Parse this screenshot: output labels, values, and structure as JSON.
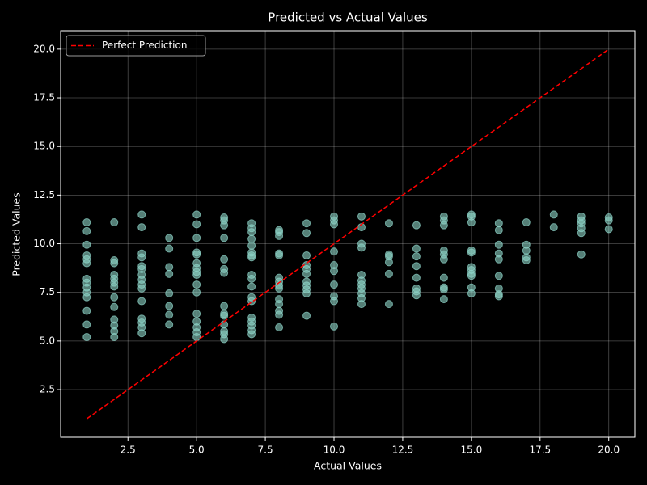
{
  "chart_data": {
    "type": "scatter",
    "title": "Predicted vs Actual Values",
    "xlabel": "Actual Values",
    "ylabel": "Predicted Values",
    "xlim": [
      0.05,
      20.95
    ],
    "ylim": [
      0.05,
      20.95
    ],
    "xticks": [
      2.5,
      {
        "value": 5,
        "label": "5.0"
      },
      7.5,
      {
        "value": 10,
        "label": "10.0"
      },
      12.5,
      {
        "value": 15,
        "label": "15.0"
      },
      17.5,
      {
        "value": 20,
        "label": "20.0"
      }
    ],
    "yticks": [
      2.5,
      {
        "value": 5,
        "label": "5.0"
      },
      7.5,
      {
        "value": 10,
        "label": "10.0"
      },
      12.5,
      {
        "value": 15,
        "label": "15.0"
      },
      17.5,
      {
        "value": 20,
        "label": "20.0"
      }
    ],
    "grid": true,
    "legend": "upper left",
    "series": [
      {
        "type": "scatter",
        "color": "#8dd3c7",
        "x": [
          1,
          1,
          1,
          1,
          1,
          1,
          1,
          1,
          1,
          1,
          1,
          1,
          1,
          1,
          2,
          2,
          2,
          2,
          2,
          2,
          2,
          2,
          2,
          2,
          2,
          2,
          2,
          3,
          3,
          3,
          3,
          3,
          3,
          3,
          3,
          3,
          3,
          3,
          3,
          3,
          3,
          3,
          4,
          4,
          4,
          4,
          4,
          4,
          4,
          4,
          5,
          5,
          5,
          5,
          5,
          5,
          5,
          5,
          5,
          5,
          5,
          5,
          5,
          5,
          5,
          5,
          6,
          6,
          6,
          6,
          6,
          6,
          6,
          6,
          6,
          6,
          6,
          6,
          6,
          6,
          7,
          7,
          7,
          7,
          7,
          7,
          7,
          7,
          7,
          7,
          7,
          7,
          7,
          7,
          7,
          7,
          7,
          7,
          8,
          8,
          8,
          8,
          8,
          8,
          8,
          8,
          8,
          8,
          8,
          8,
          8,
          8,
          9,
          9,
          9,
          9,
          9,
          9,
          9,
          9,
          9,
          9,
          9,
          10,
          10,
          10,
          10,
          10,
          10,
          10,
          10,
          10,
          10,
          11,
          11,
          11,
          11,
          11,
          11,
          11,
          11,
          11,
          11,
          11,
          12,
          12,
          12,
          12,
          12,
          12,
          13,
          13,
          13,
          13,
          13,
          13,
          13,
          13,
          14,
          14,
          14,
          14,
          14,
          14,
          14,
          14,
          14,
          14,
          15,
          15,
          15,
          15,
          15,
          15,
          15,
          15,
          15,
          15,
          15,
          16,
          16,
          16,
          16,
          16,
          16,
          16,
          16,
          16,
          17,
          17,
          17,
          17,
          17,
          18,
          18,
          19,
          19,
          19,
          19,
          19,
          19,
          20,
          20,
          20
        ],
        "values": [
          11.1,
          10.65,
          9.95,
          9.4,
          9.2,
          9.0,
          8.2,
          8.0,
          7.75,
          7.5,
          7.25,
          6.55,
          5.85,
          5.2,
          11.1,
          9.15,
          9.0,
          8.4,
          8.2,
          8.0,
          7.8,
          7.25,
          6.75,
          6.1,
          5.8,
          5.5,
          5.2,
          11.5,
          10.85,
          9.5,
          9.3,
          8.85,
          8.7,
          8.4,
          8.15,
          7.9,
          7.7,
          7.05,
          6.15,
          5.95,
          5.7,
          5.4,
          10.3,
          9.75,
          8.8,
          8.45,
          7.45,
          6.8,
          6.35,
          5.85,
          11.5,
          11.0,
          10.3,
          9.55,
          9.45,
          9.0,
          8.75,
          8.55,
          8.4,
          7.9,
          7.5,
          6.4,
          6.0,
          5.7,
          5.45,
          5.2,
          11.35,
          11.2,
          10.95,
          10.3,
          9.2,
          8.7,
          8.5,
          6.8,
          6.4,
          6.3,
          5.85,
          5.5,
          5.35,
          5.1,
          11.05,
          10.8,
          10.6,
          10.25,
          9.9,
          9.55,
          9.4,
          9.3,
          8.4,
          8.2,
          7.8,
          7.25,
          7.05,
          6.2,
          6.0,
          5.8,
          5.55,
          5.35,
          10.7,
          10.6,
          10.4,
          9.5,
          9.4,
          8.25,
          8.05,
          7.85,
          7.7,
          7.15,
          6.9,
          6.55,
          6.35,
          5.7,
          11.05,
          10.55,
          9.4,
          8.9,
          8.7,
          8.45,
          8.05,
          7.85,
          7.65,
          7.45,
          6.3,
          11.4,
          11.2,
          11.0,
          9.6,
          8.9,
          8.6,
          7.9,
          7.3,
          7.05,
          5.75,
          11.4,
          10.85,
          10.0,
          9.8,
          8.4,
          8.1,
          7.9,
          7.7,
          7.45,
          7.2,
          6.9,
          11.05,
          9.45,
          9.35,
          9.05,
          8.45,
          6.9,
          10.95,
          9.75,
          9.35,
          8.85,
          8.25,
          7.7,
          7.55,
          7.35,
          11.4,
          11.2,
          10.95,
          9.65,
          9.45,
          9.2,
          8.25,
          7.75,
          7.65,
          7.15,
          11.5,
          11.4,
          11.1,
          9.65,
          9.55,
          8.8,
          8.65,
          8.45,
          8.35,
          7.75,
          7.45,
          11.05,
          10.7,
          9.95,
          9.5,
          9.2,
          8.35,
          7.7,
          7.4,
          7.3,
          11.1,
          9.95,
          9.65,
          9.3,
          9.15,
          11.5,
          10.85,
          11.4,
          11.2,
          11.05,
          10.8,
          10.55,
          9.45,
          11.35,
          11.2,
          10.75
        ]
      },
      {
        "type": "line",
        "name": "Perfect Prediction",
        "color": "#ff0000",
        "x": [
          1,
          20
        ],
        "values": [
          1,
          20
        ]
      }
    ]
  }
}
